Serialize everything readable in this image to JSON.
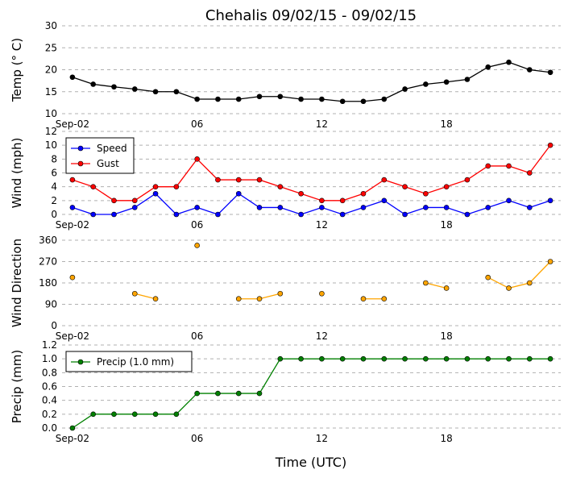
{
  "title": "Chehalis 09/02/15 - 09/02/15",
  "xlabel": "Time (UTC)",
  "x_tick_labels": [
    "Sep-02",
    "06",
    "12",
    "18"
  ],
  "x_tick_hours": [
    0,
    6,
    12,
    18
  ],
  "x_range_hours": [
    -0.5,
    23.5
  ],
  "chart_data": [
    {
      "type": "line",
      "ylabel": "Temp ($^\\circ$C)",
      "ylabel_display": "Temp (° C)",
      "ylim": [
        10,
        30
      ],
      "yticks": [
        10,
        15,
        20,
        25,
        30
      ],
      "grid": true,
      "legend": null,
      "series": [
        {
          "color": "#000000",
          "hours": [
            0,
            1,
            2,
            3,
            4,
            5,
            6,
            7,
            8,
            9,
            10,
            11,
            12,
            13,
            14,
            15,
            16,
            17,
            18,
            19,
            20,
            21,
            22,
            23
          ],
          "values": [
            18.3,
            16.7,
            16.1,
            15.6,
            15,
            15,
            13.3,
            13.3,
            13.3,
            13.9,
            13.9,
            13.3,
            13.3,
            12.8,
            12.8,
            13.3,
            15.6,
            16.7,
            17.2,
            17.8,
            20.6,
            21.7,
            20,
            19.4
          ]
        }
      ]
    },
    {
      "type": "line",
      "ylabel": "Wind (mph)",
      "ylim": [
        0,
        12
      ],
      "yticks": [
        0,
        2,
        4,
        6,
        8,
        10,
        12
      ],
      "grid": true,
      "legend": "top-left",
      "series": [
        {
          "name": "Speed",
          "color": "#0000ff",
          "hours": [
            0,
            1,
            2,
            3,
            4,
            5,
            6,
            7,
            8,
            9,
            10,
            11,
            12,
            13,
            14,
            15,
            16,
            17,
            18,
            19,
            20,
            21,
            22,
            23
          ],
          "values": [
            1,
            0,
            0,
            1,
            3,
            0,
            1,
            0,
            3,
            1,
            1,
            0,
            1,
            0,
            1,
            2,
            0,
            1,
            1,
            0,
            1,
            2,
            1,
            2
          ]
        },
        {
          "name": "Gust",
          "color": "#ff0000",
          "hours": [
            0,
            1,
            2,
            3,
            4,
            5,
            6,
            7,
            8,
            9,
            10,
            11,
            12,
            13,
            14,
            15,
            16,
            17,
            18,
            19,
            20,
            21,
            22,
            23
          ],
          "values": [
            5,
            4,
            2,
            2,
            4,
            4,
            8,
            5,
            5,
            5,
            4,
            3,
            2,
            2,
            3,
            5,
            4,
            3,
            4,
            5,
            7,
            7,
            6,
            10
          ]
        }
      ]
    },
    {
      "type": "line",
      "ylabel": "Wind Direction",
      "ylim": [
        0,
        360
      ],
      "yticks": [
        0,
        90,
        180,
        270,
        360
      ],
      "grid": true,
      "legend": null,
      "series": [
        {
          "color": "#ffa500",
          "hours": [
            0,
            1,
            2,
            3,
            4,
            5,
            6,
            7,
            8,
            9,
            10,
            11,
            12,
            13,
            14,
            15,
            16,
            17,
            18,
            19,
            20,
            21,
            22,
            23
          ],
          "values": [
            203,
            null,
            null,
            135,
            113,
            null,
            338,
            null,
            113,
            113,
            135,
            null,
            135,
            null,
            113,
            113,
            null,
            180,
            158,
            null,
            203,
            158,
            180,
            270
          ]
        }
      ]
    },
    {
      "type": "line",
      "ylabel": "Precip (mm)",
      "ylim": [
        0,
        1.2
      ],
      "yticks": [
        0.0,
        0.2,
        0.4,
        0.6,
        0.8,
        1.0,
        1.2
      ],
      "ytick_labels": [
        "0.0",
        "0.2",
        "0.4",
        "0.6",
        "0.8",
        "1.0",
        "1.2"
      ],
      "grid": true,
      "legend": "top-left",
      "series": [
        {
          "name": "Precip (1.0 mm)",
          "color": "#008000",
          "hours": [
            0,
            1,
            2,
            3,
            4,
            5,
            6,
            7,
            8,
            9,
            10,
            11,
            12,
            13,
            14,
            15,
            16,
            17,
            18,
            19,
            20,
            21,
            22,
            23
          ],
          "values": [
            0,
            0.2,
            0.2,
            0.2,
            0.2,
            0.2,
            0.5,
            0.5,
            0.5,
            0.5,
            1,
            1,
            1,
            1,
            1,
            1,
            1,
            1,
            1,
            1,
            1,
            1,
            1,
            1
          ]
        }
      ]
    }
  ]
}
